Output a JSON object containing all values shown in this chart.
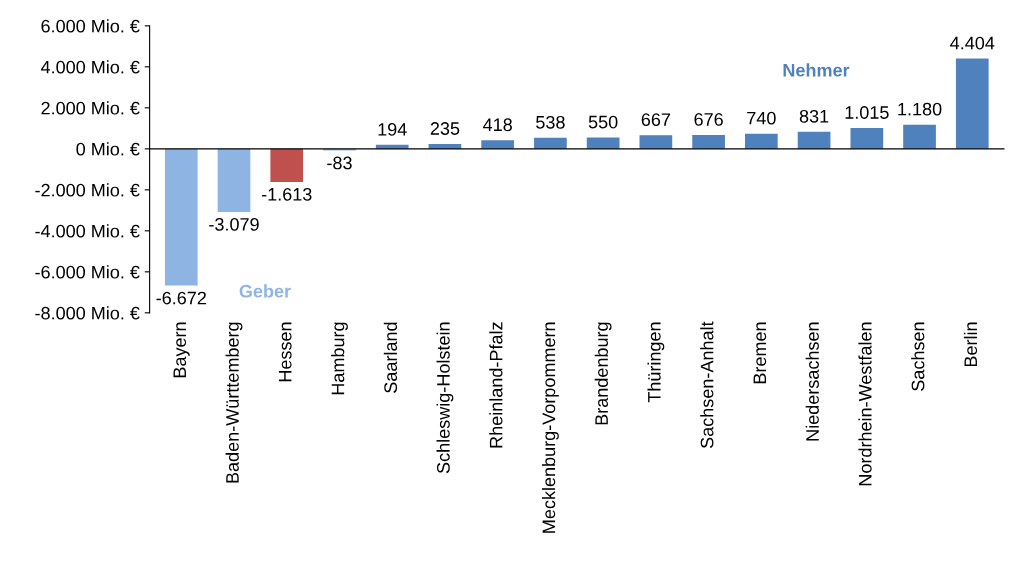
{
  "chart_data": {
    "type": "bar",
    "categories": [
      "Bayern",
      "Baden-Württemberg",
      "Hessen",
      "Hamburg",
      "Saarland",
      "Schleswig-Holstein",
      "Rheinland-Pfalz",
      "Mecklenburg-Vorpommern",
      "Brandenburg",
      "Thüringen",
      "Sachsen-Anhalt",
      "Bremen",
      "Niedersachsen",
      "Nordrhein-Westfalen",
      "Sachsen",
      "Berlin"
    ],
    "values": [
      -6672,
      -3079,
      -1613,
      -83,
      194,
      235,
      418,
      538,
      550,
      667,
      676,
      740,
      831,
      1015,
      1180,
      4404
    ],
    "colors": [
      "#8eb4e3",
      "#8eb4e3",
      "#c0504d",
      "#8eb4e3",
      "#4f81bd",
      "#4f81bd",
      "#4f81bd",
      "#4f81bd",
      "#4f81bd",
      "#4f81bd",
      "#4f81bd",
      "#4f81bd",
      "#4f81bd",
      "#4f81bd",
      "#4f81bd",
      "#4f81bd"
    ],
    "value_labels": [
      "-6.672",
      "-3.079",
      "-1.613",
      "-83",
      "194",
      "235",
      "418",
      "538",
      "550",
      "667",
      "676",
      "740",
      "831",
      "1.015",
      "1.180",
      "4.404"
    ],
    "ylim": [
      -8000,
      6000
    ],
    "yticks": [
      {
        "value": -8000,
        "label": "-8.000 Mio. €"
      },
      {
        "value": -6000,
        "label": "-6.000 Mio. €"
      },
      {
        "value": -4000,
        "label": "-4.000 Mio. €"
      },
      {
        "value": -2000,
        "label": "-2.000 Mio. €"
      },
      {
        "value": 0,
        "label": "0 Mio. €"
      },
      {
        "value": 2000,
        "label": "2.000 Mio. €"
      },
      {
        "value": 4000,
        "label": "4.000 Mio. €"
      },
      {
        "value": 6000,
        "label": "6.000 Mio. €"
      }
    ],
    "annotations": [
      "Geber",
      "Nehmer"
    ],
    "legend": false
  }
}
